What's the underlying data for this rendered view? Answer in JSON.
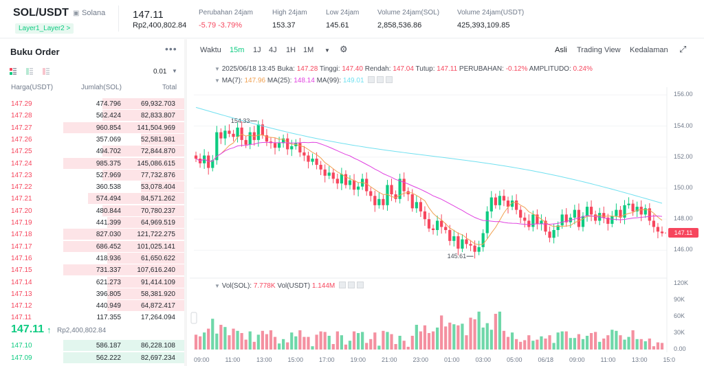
{
  "header": {
    "pair": "SOL/USDT",
    "coin_name": "Solana",
    "tag": "Layer1_Layer2 >",
    "price": "147.11",
    "price_idr": "Rp2,400,802.84",
    "stats": [
      {
        "label": "Perubahan 24jam",
        "value": "-5.79 -3.79%",
        "red": true
      },
      {
        "label": "High 24jam",
        "value": "153.37"
      },
      {
        "label": "Low 24jam",
        "value": "145.61"
      },
      {
        "label": "Volume 24jam(SOL)",
        "value": "2,858,536.86"
      },
      {
        "label": "Volume 24jam(USDT)",
        "value": "425,393,109.85"
      }
    ]
  },
  "orderbook": {
    "title": "Buku Order",
    "tick": "0.01",
    "columns": [
      "Harga(USDT)",
      "Jumlah(SOL)",
      "Total"
    ],
    "asks": [
      {
        "price": "147.29",
        "qty": "474.796",
        "total": "69,932.703",
        "depth": 0.66
      },
      {
        "price": "147.28",
        "qty": "562.424",
        "total": "82,833.807",
        "depth": 0.66
      },
      {
        "price": "147.27",
        "qty": "960.854",
        "total": "141,504.969",
        "depth": 0.98
      },
      {
        "price": "147.26",
        "qty": "357.069",
        "total": "52,581.981",
        "depth": 0.35
      },
      {
        "price": "147.25",
        "qty": "494.702",
        "total": "72,844.870",
        "depth": 0.66
      },
      {
        "price": "147.24",
        "qty": "985.375",
        "total": "145,086.615",
        "depth": 0.98
      },
      {
        "price": "147.23",
        "qty": "527.969",
        "total": "77,732.876",
        "depth": 0.66
      },
      {
        "price": "147.22",
        "qty": "360.538",
        "total": "53,078.404",
        "depth": 0.35
      },
      {
        "price": "147.21",
        "qty": "574.494",
        "total": "84,571.262",
        "depth": 0.78
      },
      {
        "price": "147.20",
        "qty": "480.844",
        "total": "70,780.237",
        "depth": 0.66
      },
      {
        "price": "147.19",
        "qty": "441.399",
        "total": "64,969.519",
        "depth": 0.62
      },
      {
        "price": "147.18",
        "qty": "827.030",
        "total": "121,722.275",
        "depth": 0.98
      },
      {
        "price": "147.17",
        "qty": "686.452",
        "total": "101,025.141",
        "depth": 0.98
      },
      {
        "price": "147.16",
        "qty": "418.936",
        "total": "61,650.622",
        "depth": 0.62
      },
      {
        "price": "147.15",
        "qty": "731.337",
        "total": "107,616.240",
        "depth": 0.98
      },
      {
        "price": "147.14",
        "qty": "621.273",
        "total": "91,414.109",
        "depth": 0.62
      },
      {
        "price": "147.13",
        "qty": "396.805",
        "total": "58,381.920",
        "depth": 0.62
      },
      {
        "price": "147.12",
        "qty": "440.949",
        "total": "64,872.417",
        "depth": 0.62
      },
      {
        "price": "147.11",
        "qty": "117.355",
        "total": "17,264.094",
        "depth": 0.0
      }
    ],
    "mid_price": "147.11",
    "mid_sub": "Rp2,400,802.84",
    "bids": [
      {
        "price": "147.10",
        "qty": "586.187",
        "total": "86,228.108",
        "depth": 0.98
      },
      {
        "price": "147.09",
        "qty": "562.222",
        "total": "82,697.234",
        "depth": 0.98
      }
    ]
  },
  "toolbar": {
    "waktu": "Waktu",
    "intervals": [
      "15m",
      "1J",
      "4J",
      "1H",
      "1M"
    ],
    "active": "15m",
    "views": [
      "Asli",
      "Trading View",
      "Kedalaman"
    ]
  },
  "chart_info": {
    "ohlc_date": "2025/06/18 13:45",
    "open_label": "Buka:",
    "open": "147.28",
    "high_label": "Tinggi:",
    "high": "147.40",
    "low_label": "Rendah:",
    "low": "147.04",
    "close_label": "Tutup:",
    "close": "147.11",
    "change_label": "PERUBAHAN:",
    "change": "-0.12%",
    "amp_label": "AMPLITUDO:",
    "amp": "0.24%",
    "ma7_label": "MA(7):",
    "ma7": "147.96",
    "ma25_label": "MA(25):",
    "ma25": "148.14",
    "ma99_label": "MA(99):",
    "ma99": "149.01",
    "vol_sol_label": "Vol(SOL):",
    "vol_sol": "7.778K",
    "vol_usdt_label": "Vol(USDT)",
    "vol_usdt": "1.144M",
    "high_marker": "154.33",
    "low_marker": "145.61",
    "last_price": "147.11",
    "colors": {
      "up": "#0ecb81",
      "down": "#f6465d",
      "ma7": "#f0a050",
      "ma25": "#e040e0",
      "ma99": "#70e0f0"
    }
  },
  "chart_data": {
    "type": "candlestick",
    "y_ticks": [
      "156.00",
      "154.00",
      "152.00",
      "150.00",
      "148.00",
      "146.00"
    ],
    "ylim": [
      145,
      156.5
    ],
    "vol_ticks": [
      "120K",
      "90K",
      "60K",
      "30K",
      "0.00"
    ],
    "vol_ylim": [
      0,
      120
    ],
    "x_ticks": [
      "09:00",
      "11:00",
      "13:00",
      "15:00",
      "17:00",
      "19:00",
      "21:00",
      "23:00",
      "01:00",
      "03:00",
      "05:00",
      "06/18",
      "09:00",
      "11:00",
      "13:00",
      "15:0"
    ],
    "close": [
      151.9,
      151.6,
      152.1,
      151.3,
      151.8,
      153.6,
      153.2,
      153.7,
      153.5,
      153.3,
      153.9,
      153.1,
      152.8,
      153.6,
      153.1,
      154.1,
      153.4,
      153.0,
      152.9,
      152.6,
      152.9,
      153.2,
      152.5,
      152.7,
      152.9,
      152.3,
      152.1,
      151.7,
      151.9,
      151.5,
      151.2,
      150.8,
      151.0,
      150.6,
      150.3,
      150.9,
      150.2,
      150.5,
      149.9,
      150.1,
      150.6,
      149.8,
      149.5,
      148.9,
      149.3,
      148.9,
      150.2,
      149.6,
      149.3,
      150.6,
      149.8,
      149.6,
      148.7,
      149.1,
      148.5,
      148.0,
      147.4,
      147.3,
      147.9,
      147.5,
      147.3,
      146.6,
      146.9,
      146.1,
      146.7,
      146.4,
      146.3,
      145.9,
      146.2,
      147.1,
      148.5,
      149.4,
      148.9,
      149.5,
      149.2,
      148.8,
      149.2,
      148.6,
      148.1,
      147.9,
      147.5,
      148.3,
      147.7,
      147.9,
      147.2,
      146.8,
      147.3,
      147.6,
      148.3,
      147.8,
      148.1,
      148.6,
      147.5,
      148.2,
      148.8,
      148.3,
      147.9,
      148.4,
      148.1,
      147.7,
      148.2,
      148.6,
      148.1,
      148.9,
      149.0,
      148.5,
      148.8,
      148.3,
      148.7,
      147.9,
      147.5,
      147.2,
      147.1
    ],
    "volumes": [
      27,
      24,
      31,
      38,
      56,
      29,
      45,
      41,
      26,
      38,
      34,
      30,
      18,
      33,
      14,
      27,
      34,
      28,
      35,
      23,
      11,
      19,
      13,
      31,
      24,
      35,
      23,
      23,
      6,
      27,
      33,
      32,
      25,
      10,
      33,
      26,
      9,
      16,
      33,
      30,
      32,
      12,
      19,
      31,
      7,
      34,
      32,
      28,
      10,
      25,
      16,
      5,
      25,
      45,
      33,
      44,
      30,
      33,
      40,
      62,
      42,
      49,
      46,
      44,
      47,
      26,
      58,
      55,
      69,
      40,
      48,
      36,
      65,
      69,
      34,
      23,
      31,
      19,
      14,
      17,
      26,
      16,
      18,
      24,
      20,
      26,
      12,
      31,
      33,
      33,
      21,
      21,
      28,
      19,
      25,
      30,
      32,
      14,
      20,
      26,
      36,
      34,
      26,
      18,
      23,
      35,
      19,
      19,
      15,
      20,
      6,
      13,
      12
    ]
  }
}
